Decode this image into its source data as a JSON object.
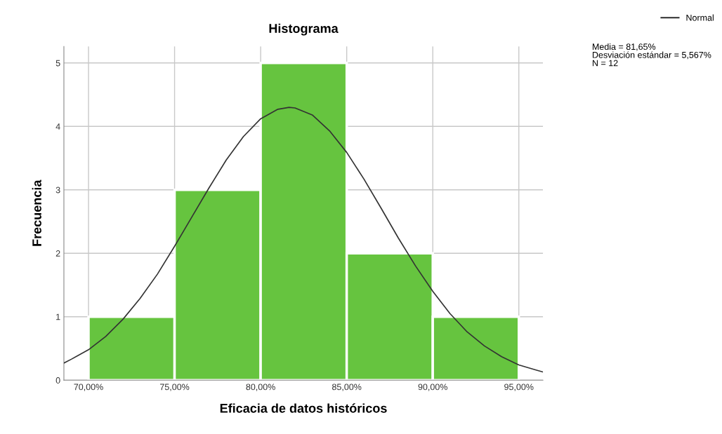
{
  "chart_data": {
    "type": "histogram",
    "title": "Histograma",
    "xlabel": "Eficacia de datos históricos",
    "ylabel": "Frecuencia",
    "series": [
      {
        "type": "histogram",
        "bins": [
          70,
          75,
          80,
          85,
          90,
          95
        ],
        "values": [
          1,
          3,
          5,
          2,
          1
        ],
        "color": "#66c43f"
      },
      {
        "type": "line",
        "name": "Normal",
        "color": "#333333",
        "x": [
          68.57,
          69,
          70,
          71,
          72,
          73,
          74,
          75,
          76,
          77,
          78,
          79,
          80,
          81,
          81.65,
          82,
          83,
          84,
          85,
          86,
          87,
          88,
          89,
          90,
          91,
          92,
          93,
          94,
          95,
          96,
          96.4
        ],
        "values": [
          0.27,
          0.33,
          0.48,
          0.69,
          0.96,
          1.29,
          1.67,
          2.11,
          2.57,
          3.03,
          3.47,
          3.84,
          4.12,
          4.27,
          4.3,
          4.29,
          4.18,
          3.93,
          3.59,
          3.17,
          2.71,
          2.24,
          1.8,
          1.4,
          1.05,
          0.76,
          0.54,
          0.37,
          0.24,
          0.16,
          0.13
        ]
      }
    ],
    "xlim": [
      68.57,
      96.4
    ],
    "ylim": [
      0,
      5.26
    ],
    "xticks": [
      {
        "value": 70,
        "label": "70,00%"
      },
      {
        "value": 75,
        "label": "75,00%"
      },
      {
        "value": 80,
        "label": "80,00%"
      },
      {
        "value": 85,
        "label": "85,00%"
      },
      {
        "value": 90,
        "label": "90,00%"
      },
      {
        "value": 95,
        "label": "95,00%"
      }
    ],
    "yticks": [
      0,
      1,
      2,
      3,
      4,
      5
    ],
    "grid": true,
    "legend": "top right",
    "annotations": [
      "Media = 81,65%",
      "Desviación estándar = 5,567%",
      "N = 12"
    ]
  }
}
